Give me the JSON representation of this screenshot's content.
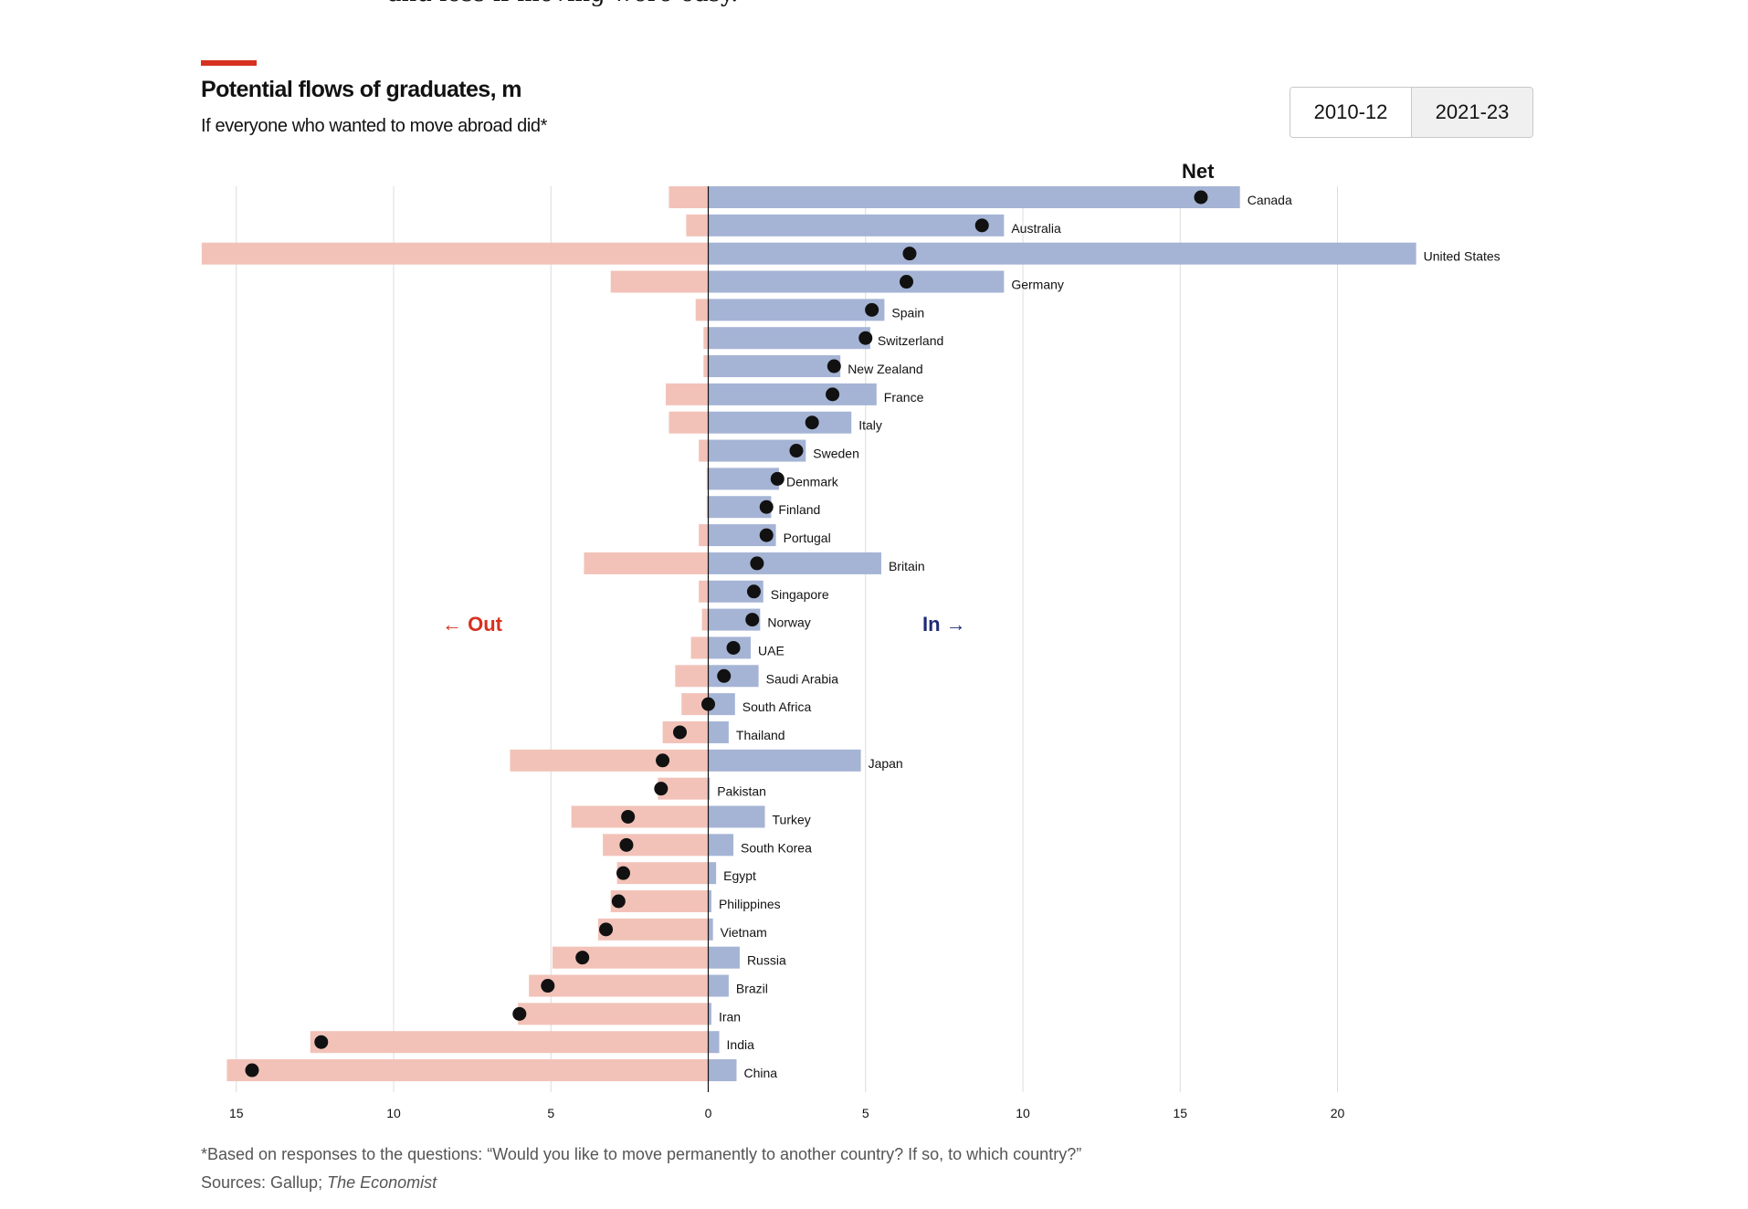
{
  "lead_text": "and less if moving were easy.",
  "header": {
    "title": "Potential flows of graduates, m",
    "subtitle": "If everyone who wanted to move abroad did*"
  },
  "toggle": {
    "options": [
      "2010-12",
      "2021-23"
    ],
    "selected": "2021-23"
  },
  "labels": {
    "net": "Net",
    "out": "← Out",
    "in": "In →"
  },
  "footnote": "*Based on responses to the questions: “Would you like to move permanently to another country? If so, to which country?”",
  "sources": {
    "prefix": "Sources: Gallup; ",
    "italic": "The Economist"
  },
  "colors": {
    "out": "#f2c2b8",
    "in": "#a5b4d5",
    "net": "#111111",
    "accent": "#d6311f",
    "in_label": "#1f2a78"
  },
  "chart_data": {
    "type": "bar",
    "orientation": "horizontal diverging with net dots",
    "title": "Potential flows of graduates, m",
    "subtitle": "If everyone who wanted to move abroad did*",
    "xlim": [
      -16.1,
      22.5
    ],
    "x_ticks": [
      -15,
      -10,
      -5,
      0,
      5,
      10,
      15,
      20
    ],
    "x_tick_labels": [
      "15",
      "10",
      "5",
      "0",
      "5",
      "10",
      "15",
      "20"
    ],
    "grid": true,
    "categories": [
      "Canada",
      "Australia",
      "United States",
      "Germany",
      "Spain",
      "Switzerland",
      "New Zealand",
      "France",
      "Italy",
      "Sweden",
      "Denmark",
      "Finland",
      "Portugal",
      "Britain",
      "Singapore",
      "Norway",
      "UAE",
      "Saudi Arabia",
      "South Africa",
      "Thailand",
      "Japan",
      "Pakistan",
      "Turkey",
      "South Korea",
      "Egypt",
      "Philippines",
      "Vietnam",
      "Russia",
      "Brazil",
      "Iran",
      "India",
      "China"
    ],
    "series": [
      {
        "name": "Out",
        "values": [
          1.25,
          0.7,
          16.1,
          3.1,
          0.4,
          0.15,
          0.15,
          1.35,
          1.25,
          0.3,
          0.05,
          0.05,
          0.3,
          3.95,
          0.3,
          0.2,
          0.55,
          1.05,
          0.85,
          1.45,
          6.3,
          1.6,
          4.35,
          3.35,
          2.9,
          3.1,
          3.5,
          4.95,
          5.7,
          6.05,
          12.65,
          15.3
        ]
      },
      {
        "name": "In",
        "values": [
          16.9,
          9.4,
          22.5,
          9.4,
          5.6,
          5.15,
          4.2,
          5.35,
          4.55,
          3.1,
          2.25,
          2.0,
          2.15,
          5.5,
          1.75,
          1.65,
          1.35,
          1.6,
          0.85,
          0.65,
          4.85,
          0.05,
          1.8,
          0.8,
          0.25,
          0.1,
          0.15,
          1.0,
          0.65,
          0.1,
          0.35,
          0.9
        ]
      },
      {
        "name": "Net",
        "values": [
          15.66,
          8.7,
          6.4,
          6.3,
          5.2,
          5.0,
          4.0,
          3.95,
          3.3,
          2.8,
          2.2,
          1.85,
          1.85,
          1.55,
          1.45,
          1.4,
          0.8,
          0.5,
          0.0,
          -0.9,
          -1.45,
          -1.5,
          -2.55,
          -2.6,
          -2.7,
          -2.85,
          -3.25,
          -4.0,
          -5.1,
          -6.0,
          -12.3,
          -14.5
        ]
      }
    ]
  }
}
